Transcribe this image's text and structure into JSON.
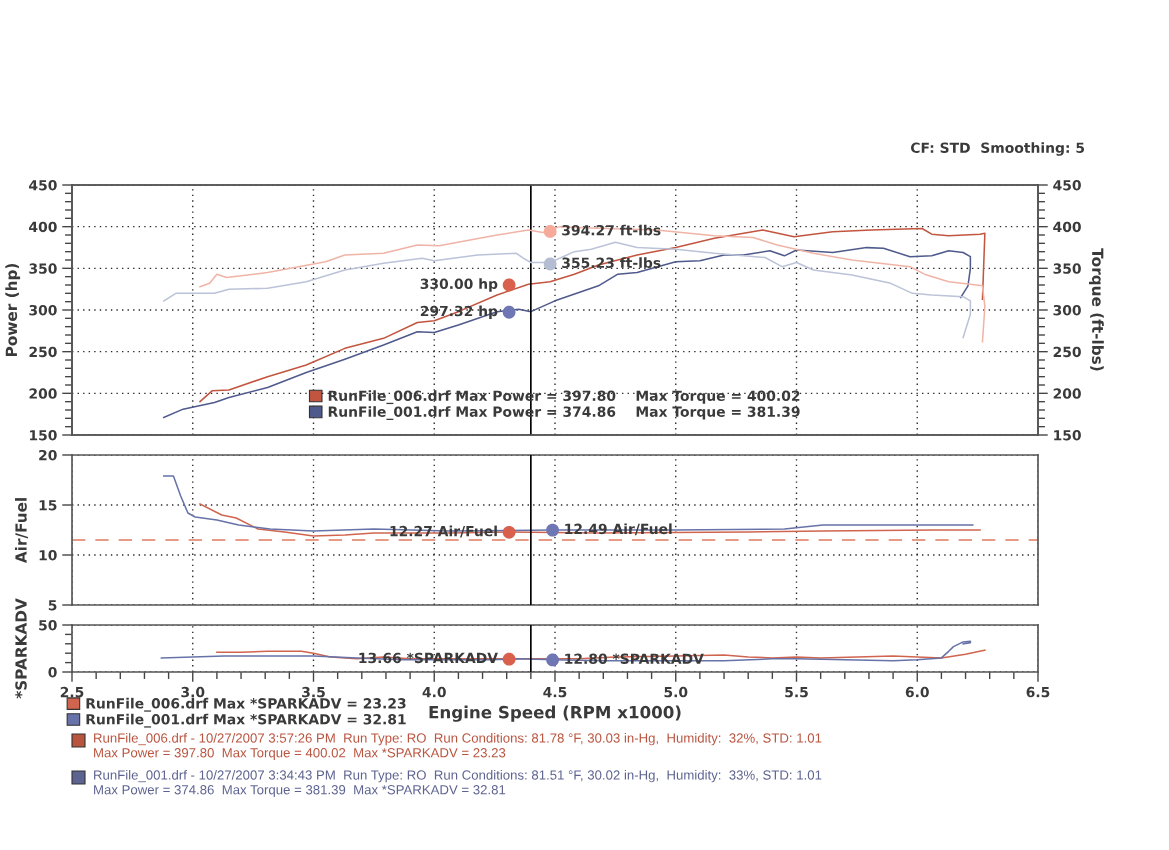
{
  "chart_data": [
    {
      "type": "line",
      "ylabel": "Power (hp)",
      "y2label": "Torque (ft-lbs)",
      "xlim": [
        2.5,
        6.5
      ],
      "xticks": [
        2.5,
        3,
        3.5,
        4,
        4.5,
        5,
        5.5,
        6,
        6.5
      ],
      "ylim": [
        150,
        450
      ],
      "yticks": [
        150,
        {
          "value": 160,
          "label": null
        },
        {
          "value": 170,
          "label": null
        },
        {
          "value": 180,
          "label": null
        },
        {
          "value": 190,
          "label": null
        },
        200,
        {
          "value": 210,
          "label": null
        },
        {
          "value": 220,
          "label": null
        },
        {
          "value": 230,
          "label": null
        },
        {
          "value": 240,
          "label": null
        },
        250,
        {
          "value": 260,
          "label": null
        },
        {
          "value": 270,
          "label": null
        },
        {
          "value": 280,
          "label": null
        },
        {
          "value": 290,
          "label": null
        },
        300,
        {
          "value": 310,
          "label": null
        },
        {
          "value": 320,
          "label": null
        },
        {
          "value": 330,
          "label": null
        },
        {
          "value": 340,
          "label": null
        },
        350,
        {
          "value": 360,
          "label": null
        },
        {
          "value": 370,
          "label": null
        },
        {
          "value": 380,
          "label": null
        },
        {
          "value": 390,
          "label": null
        },
        400,
        {
          "value": 410,
          "label": null
        },
        {
          "value": 420,
          "label": null
        },
        {
          "value": 430,
          "label": null
        },
        {
          "value": 440,
          "label": null
        },
        450
      ],
      "y2lim": [
        150,
        450
      ],
      "y2ticks": [
        150,
        {
          "value": 160,
          "label": null
        },
        {
          "value": 170,
          "label": null
        },
        {
          "value": 180,
          "label": null
        },
        {
          "value": 190,
          "label": null
        },
        200,
        {
          "value": 210,
          "label": null
        },
        {
          "value": 220,
          "label": null
        },
        {
          "value": 230,
          "label": null
        },
        {
          "value": 240,
          "label": null
        },
        250,
        {
          "value": 260,
          "label": null
        },
        {
          "value": 270,
          "label": null
        },
        {
          "value": 280,
          "label": null
        },
        {
          "value": 290,
          "label": null
        },
        300,
        {
          "value": 310,
          "label": null
        },
        {
          "value": 320,
          "label": null
        },
        {
          "value": 330,
          "label": null
        },
        {
          "value": 340,
          "label": null
        },
        350,
        {
          "value": 360,
          "label": null
        },
        {
          "value": 370,
          "label": null
        },
        {
          "value": 380,
          "label": null
        },
        {
          "value": 390,
          "label": null
        },
        400,
        {
          "value": 410,
          "label": null
        },
        {
          "value": 420,
          "label": null
        },
        {
          "value": 430,
          "label": null
        },
        {
          "value": 440,
          "label": null
        },
        450
      ],
      "tick_labels": "y",
      "grid": true,
      "legend": "bottom",
      "ref_lines": [
        {
          "axis": "x",
          "value": 4.4,
          "color": "#000000"
        }
      ],
      "annotations": [
        "CF: STD  Smoothing: 5"
      ],
      "series": [
        {
          "name": "RunFile_006.drf Max Power = 397.80    Max Torque = 400.02",
          "color": "#c2553f",
          "x": [
            3.03,
            3.08,
            3.15,
            3.31,
            3.47,
            3.63,
            3.79,
            3.93,
            4.0,
            4.1,
            4.26,
            4.39,
            4.48,
            4.58,
            4.68,
            4.84,
            5.0,
            5.16,
            5.36,
            5.49,
            5.65,
            5.81,
            6.02,
            6.06,
            6.13,
            6.26,
            6.28,
            6.27
          ],
          "values": [
            190,
            203,
            204,
            220,
            234,
            254,
            266,
            285,
            287,
            298,
            318,
            331,
            334,
            343,
            354,
            366,
            375,
            386,
            396,
            388,
            394,
            396,
            397.8,
            391,
            389,
            391,
            392,
            313
          ]
        },
        {
          "name": "RunFile_001.drf Max Power = 374.86    Max Torque = 381.39",
          "color": "#4f5a8c",
          "x": [
            2.88,
            2.96,
            3.09,
            3.15,
            3.31,
            3.47,
            3.63,
            3.79,
            3.93,
            4.0,
            4.1,
            4.26,
            4.35,
            4.4,
            4.5,
            4.68,
            4.76,
            4.84,
            5.0,
            5.1,
            5.2,
            5.28,
            5.39,
            5.45,
            5.5,
            5.65,
            5.79,
            5.86,
            5.97,
            6.06,
            6.13,
            6.19,
            6.22,
            6.22,
            6.21,
            6.18
          ],
          "values": [
            171,
            181,
            189,
            195,
            207,
            225,
            241,
            258,
            274,
            273,
            282,
            298,
            301,
            298,
            311,
            329,
            343,
            345,
            358,
            359,
            366,
            366,
            371,
            365,
            372,
            369,
            374.86,
            374,
            364,
            365,
            371,
            369,
            364,
            350,
            329,
            315
          ]
        },
        {
          "axis": "y2",
          "color": "#f0b4a6",
          "x": [
            3.03,
            3.07,
            3.1,
            3.14,
            3.31,
            3.55,
            3.63,
            3.79,
            3.93,
            4.02,
            4.26,
            4.39,
            4.45,
            4.52,
            4.68,
            4.92,
            5.16,
            5.32,
            5.42,
            5.57,
            5.73,
            5.97,
            6.03,
            6.13,
            6.22,
            6.27,
            6.28,
            6.27
          ],
          "values": [
            328,
            332,
            343,
            339,
            345,
            358,
            366,
            368,
            378,
            377,
            390,
            396,
            393,
            400.02,
            398,
            396,
            389,
            387,
            378,
            368,
            360,
            352,
            343,
            334,
            331,
            329,
            304,
            262
          ]
        },
        {
          "axis": "y2",
          "color": "#bcc3d8",
          "x": [
            2.88,
            2.93,
            3.09,
            3.15,
            3.31,
            3.47,
            3.63,
            3.79,
            3.95,
            4.0,
            4.18,
            4.34,
            4.37,
            4.4,
            4.48,
            4.58,
            4.65,
            4.75,
            4.84,
            5.0,
            5.16,
            5.37,
            5.44,
            5.5,
            5.57,
            5.73,
            5.89,
            5.98,
            6.06,
            6.19,
            6.22,
            6.22,
            6.19
          ],
          "values": [
            311,
            320,
            320,
            325,
            326,
            334,
            348,
            356,
            362,
            359,
            366,
            368,
            362,
            357,
            357,
            370,
            373,
            381.39,
            375,
            373,
            368,
            363,
            352,
            357,
            348,
            342,
            332,
            320,
            318,
            316,
            311,
            295,
            267
          ]
        },
        {
          "type": "scatter",
          "marker": "circle",
          "color": "#d9604c",
          "x": [
            4.31
          ],
          "values": [
            330.0
          ],
          "value_labels": [
            "330.00 hp"
          ]
        },
        {
          "type": "scatter",
          "marker": "circle",
          "color": "#6e76b4",
          "x": [
            4.31
          ],
          "values": [
            297.32
          ],
          "value_labels": [
            "297.32 hp"
          ]
        },
        {
          "type": "scatter",
          "marker": "circle",
          "axis": "y2",
          "color": "#f5aa9a",
          "x": [
            4.48
          ],
          "values": [
            394.27
          ],
          "value_labels": [
            "394.27 ft-lbs"
          ]
        },
        {
          "type": "scatter",
          "marker": "circle",
          "axis": "y2",
          "color": "#b5bdd2",
          "x": [
            4.48
          ],
          "values": [
            355.23
          ],
          "value_labels": [
            "355.23 ft-lbs"
          ]
        }
      ]
    },
    {
      "type": "line",
      "ylabel": "Air/Fuel",
      "xlim": [
        2.5,
        6.5
      ],
      "xticks": [
        2.5,
        3,
        3.5,
        4,
        4.5,
        5,
        5.5,
        6,
        6.5
      ],
      "ylim": [
        5,
        20
      ],
      "yticks": [
        5,
        10,
        15,
        20
      ],
      "tick_labels": "y",
      "grid": true,
      "ref_lines": [
        {
          "axis": "x",
          "value": 4.4,
          "color": "#000000"
        },
        {
          "axis": "y",
          "value": 11.5,
          "color": "#e07a5f",
          "line_style": "dashed"
        }
      ],
      "series": [
        {
          "color": "#d0654f",
          "x": [
            3.03,
            3.12,
            3.18,
            3.27,
            3.38,
            3.5,
            3.63,
            3.75,
            4.06,
            4.31,
            4.68,
            5.3,
            5.61,
            6.07,
            6.26
          ],
          "values": [
            15.1,
            14.0,
            13.7,
            12.6,
            12.3,
            11.9,
            12.0,
            12.2,
            12.2,
            12.3,
            12.2,
            12.3,
            12.4,
            12.5,
            12.5
          ]
        },
        {
          "color": "#6672a8",
          "x": [
            2.88,
            2.92,
            2.95,
            2.98,
            3.01,
            3.1,
            3.19,
            3.32,
            3.5,
            3.75,
            4.06,
            4.49,
            4.99,
            5.45,
            5.61,
            5.92,
            6.23
          ],
          "values": [
            17.9,
            17.9,
            15.9,
            14.2,
            13.8,
            13.5,
            13.0,
            12.6,
            12.4,
            12.6,
            12.4,
            12.5,
            12.5,
            12.6,
            13.0,
            13.0,
            13.0
          ]
        },
        {
          "type": "scatter",
          "marker": "circle",
          "color": "#d9604c",
          "x": [
            4.31
          ],
          "values": [
            12.27
          ],
          "value_labels": [
            "12.27 Air/Fuel"
          ]
        },
        {
          "type": "scatter",
          "marker": "circle",
          "color": "#6e76b4",
          "x": [
            4.49
          ],
          "values": [
            12.49
          ],
          "value_labels": [
            "12.49 Air/Fuel"
          ]
        }
      ]
    },
    {
      "type": "line",
      "ylabel": "*SPARKADV",
      "xlabel": "Engine Speed (RPM x1000)",
      "xlim": [
        2.5,
        6.5
      ],
      "xticks": [
        2.5,
        {
          "value": 2.6,
          "label": null
        },
        {
          "value": 2.7,
          "label": null
        },
        {
          "value": 2.8,
          "label": null
        },
        {
          "value": 2.9,
          "label": null
        },
        {
          "value": 3,
          "label": "3.0"
        },
        {
          "value": 3.1,
          "label": null
        },
        {
          "value": 3.2,
          "label": null
        },
        {
          "value": 3.3,
          "label": null
        },
        {
          "value": 3.4,
          "label": null
        },
        3.5,
        {
          "value": 3.6,
          "label": null
        },
        {
          "value": 3.7,
          "label": null
        },
        {
          "value": 3.8,
          "label": null
        },
        {
          "value": 3.9,
          "label": null
        },
        {
          "value": 4,
          "label": "4.0"
        },
        {
          "value": 4.1,
          "label": null
        },
        {
          "value": 4.2,
          "label": null
        },
        {
          "value": 4.3,
          "label": null
        },
        {
          "value": 4.4,
          "label": null
        },
        4.5,
        {
          "value": 4.6,
          "label": null
        },
        {
          "value": 4.7,
          "label": null
        },
        {
          "value": 4.8,
          "label": null
        },
        {
          "value": 4.9,
          "label": null
        },
        {
          "value": 5,
          "label": "5.0"
        },
        {
          "value": 5.1,
          "label": null
        },
        {
          "value": 5.2,
          "label": null
        },
        {
          "value": 5.3,
          "label": null
        },
        {
          "value": 5.4,
          "label": null
        },
        5.5,
        {
          "value": 5.6,
          "label": null
        },
        {
          "value": 5.7,
          "label": null
        },
        {
          "value": 5.8,
          "label": null
        },
        {
          "value": 5.9,
          "label": null
        },
        {
          "value": 6,
          "label": "6.0"
        },
        {
          "value": 6.1,
          "label": null
        },
        {
          "value": 6.2,
          "label": null
        },
        {
          "value": 6.3,
          "label": null
        },
        {
          "value": 6.4,
          "label": null
        },
        6.5
      ],
      "ylim": [
        0,
        50
      ],
      "yticks": [
        0,
        {
          "value": 10,
          "label": null
        },
        {
          "value": 20,
          "label": null
        },
        {
          "value": 30,
          "label": null
        },
        {
          "value": 40,
          "label": null
        },
        50
      ],
      "grid": true,
      "legend": "bottom left",
      "ref_lines": [
        {
          "axis": "x",
          "value": 4.4,
          "color": "#000000"
        }
      ],
      "series": [
        {
          "name": "RunFile_006.drf Max *SPARKADV = 23.23",
          "color": "#d0654f",
          "x": [
            3.1,
            3.2,
            3.31,
            3.45,
            3.5,
            3.57,
            3.68,
            3.79,
            3.9,
            4.05,
            4.2,
            4.31,
            4.45,
            4.6,
            4.75,
            5.0,
            5.2,
            5.3,
            5.4,
            5.5,
            5.6,
            5.75,
            5.9,
            6.0,
            6.1,
            6.2,
            6.28
          ],
          "values": [
            21,
            21,
            22,
            22,
            20,
            16,
            14,
            16,
            14,
            14,
            14,
            14,
            14,
            14,
            16,
            17,
            18,
            16,
            15,
            16,
            15,
            16,
            17,
            16,
            15,
            19,
            23.23
          ]
        },
        {
          "name": "RunFile_001.drf Max *SPARKADV = 32.81",
          "color": "#6672a8",
          "x": [
            2.87,
            3.13,
            3.5,
            3.68,
            3.87,
            4.23,
            4.35,
            4.49,
            4.7,
            5.0,
            5.2,
            5.4,
            5.5,
            5.7,
            5.9,
            6.0,
            6.1,
            6.13,
            6.15,
            6.19,
            6.22,
            6.22,
            6.19
          ],
          "values": [
            15,
            17,
            17,
            15,
            13,
            13,
            14,
            13,
            12,
            12,
            12,
            14,
            14,
            13,
            12,
            13,
            15,
            22,
            27,
            32,
            32.81,
            31,
            30
          ]
        },
        {
          "type": "scatter",
          "marker": "circle",
          "color": "#d9604c",
          "x": [
            4.31
          ],
          "values": [
            13.66
          ],
          "value_labels": [
            "13.66 *SPARKADV"
          ]
        },
        {
          "type": "scatter",
          "marker": "circle",
          "color": "#6e76b4",
          "x": [
            4.49
          ],
          "values": [
            12.8
          ],
          "value_labels": [
            "12.80 *SPARKADV"
          ]
        }
      ]
    },
    {
      "type": "other",
      "annotations": [
        "RunFile_006.drf - 10/27/2007 3:57:26 PM  Run Type: RO  Run Conditions: 81.78 °F, 30.03 in-Hg,  Humidity:  32%, STD: 1.01\nMax Power = 397.80  Max Torque = 400.02  Max *SPARKADV = 23.23",
        "RunFile_001.drf - 10/27/2007 3:34:43 PM  Run Type: RO  Run Conditions: 81.51 °F, 30.02 in-Hg,  Humidity:  33%, STD: 1.01\nMax Power = 374.86  Max Torque = 381.39  Max *SPARKADV = 32.81"
      ],
      "colors": [
        "#b9543f",
        "#5d6390"
      ]
    }
  ]
}
